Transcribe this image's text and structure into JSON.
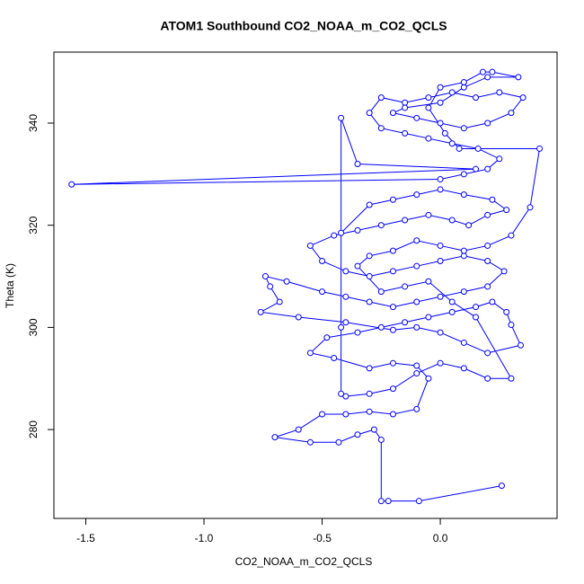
{
  "chart_data": {
    "type": "line",
    "markers": true,
    "title": "ATOM1 Southbound CO2_NOAA_m_CO2_QCLS",
    "x_label": "CO2_NOAA_m_CO2_QCLS",
    "y_label": "Theta (K)",
    "xlim": [
      -1.635,
      0.494
    ],
    "ylim": [
      262.6,
      353.9
    ],
    "xticks": [
      {
        "value": -1.5,
        "label": "-1.5"
      },
      {
        "value": -1,
        "label": "-1.0"
      },
      {
        "value": -0.5,
        "label": "-0.5"
      },
      {
        "value": 0,
        "label": "0.0"
      }
    ],
    "yticks": [
      280,
      300,
      320,
      340
    ],
    "grid": false,
    "series": [
      {
        "color": "#0000ff",
        "x": [
          0.26,
          -0.09,
          -0.22,
          -0.25,
          -0.25,
          -0.28,
          -0.35,
          -0.43,
          -0.55,
          -0.7,
          -0.6,
          -0.5,
          -0.4,
          -0.3,
          -0.2,
          -0.1,
          -0.05,
          -0.1,
          -0.2,
          -0.3,
          -0.45,
          -0.55,
          -0.48,
          -0.35,
          -0.25,
          -0.15,
          -0.05,
          0.05,
          0.15,
          0.22,
          0.28,
          0.3,
          0.34,
          0.2,
          0.1,
          0.0,
          -0.1,
          -0.2,
          -0.4,
          -0.6,
          -0.76,
          -0.68,
          -0.72,
          -0.74,
          -0.65,
          -0.5,
          -0.4,
          -0.3,
          -0.2,
          -0.1,
          0.0,
          0.1,
          0.2,
          0.27,
          0.2,
          0.1,
          0.0,
          -0.1,
          -0.2,
          -0.3,
          -0.4,
          -0.5,
          -0.55,
          -0.45,
          -0.35,
          -0.25,
          -0.15,
          -0.05,
          0.05,
          0.12,
          0.2,
          0.28,
          0.22,
          0.1,
          0.0,
          -0.1,
          -0.2,
          -0.3,
          -0.42,
          -0.42,
          -0.42,
          -0.42,
          -0.35,
          0.15,
          -1.56,
          0.0,
          0.1,
          0.2,
          0.25,
          0.16,
          0.05,
          -0.05,
          -0.15,
          -0.25,
          -0.3,
          -0.25,
          -0.15,
          -0.05,
          0.05,
          0.15,
          0.25,
          0.35,
          0.3,
          0.2,
          0.1,
          0.0,
          -0.1,
          -0.2,
          -0.15,
          0.0,
          0.1,
          0.2,
          0.33,
          0.22,
          0.18,
          0.1,
          0.0,
          -0.05,
          0.02,
          0.08,
          0.42,
          0.38,
          0.3,
          0.2,
          0.1,
          0.0,
          -0.1,
          -0.2,
          -0.3,
          -0.35,
          -0.25,
          -0.15,
          -0.05,
          0.05,
          0.15,
          0.3,
          0.2,
          0.1,
          0.0,
          -0.1,
          -0.2,
          -0.3,
          -0.4
        ],
        "values": [
          269,
          266,
          266,
          266,
          278,
          280,
          279,
          277.5,
          277.5,
          278.5,
          280,
          283,
          283,
          283.5,
          283,
          284,
          290,
          292.5,
          293,
          292,
          294,
          295,
          298,
          299,
          300,
          301,
          302,
          303,
          304,
          305,
          303,
          300.5,
          296.5,
          295,
          297,
          299,
          300,
          299.5,
          301,
          302,
          303,
          305,
          308,
          310,
          309,
          307,
          306,
          305,
          304,
          305,
          306,
          307,
          308,
          311,
          313,
          314,
          313,
          312,
          311,
          310,
          311,
          313,
          316,
          318,
          319,
          320,
          321,
          322,
          321,
          320,
          322,
          323,
          325,
          326,
          327,
          326,
          325,
          324,
          318.5,
          300,
          287,
          341,
          332,
          331,
          328,
          329,
          330,
          331,
          333,
          335,
          336,
          337,
          338,
          339,
          342,
          345,
          344,
          345,
          346,
          345,
          346,
          345,
          342,
          340,
          339,
          340,
          341,
          342,
          343,
          344,
          347,
          349,
          349,
          350,
          350,
          348,
          347,
          343,
          338,
          335,
          335,
          323.5,
          318,
          316,
          315,
          316,
          317,
          315,
          314,
          312,
          307,
          308,
          309,
          305,
          302,
          290,
          290,
          292,
          293,
          291,
          288,
          287,
          286.5
        ]
      }
    ]
  }
}
